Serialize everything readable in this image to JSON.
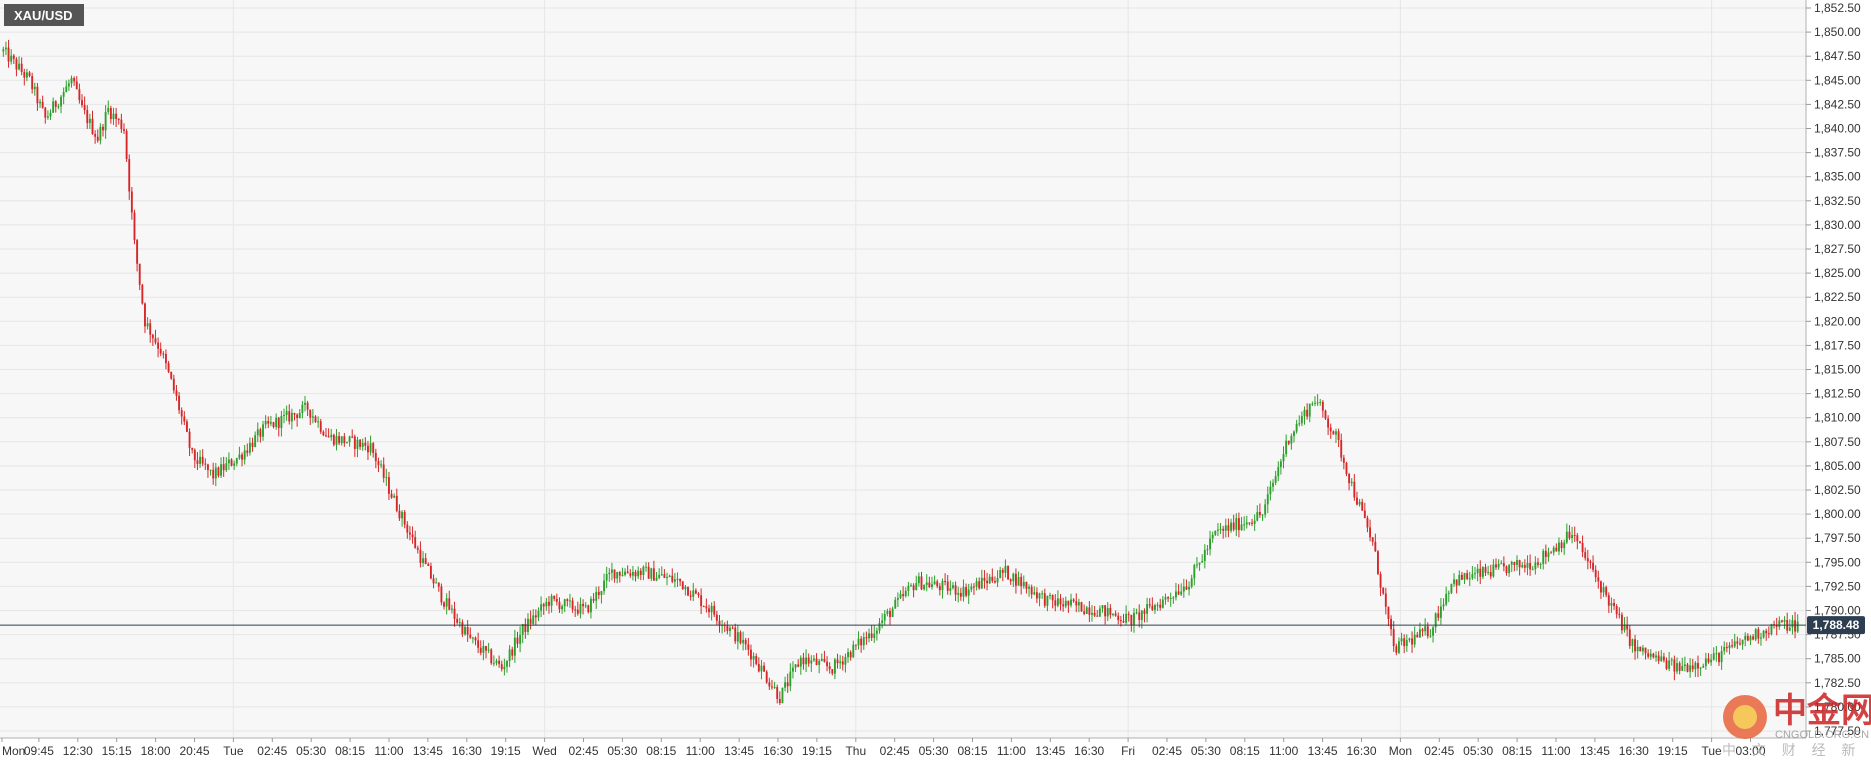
{
  "symbol": "XAU/USD",
  "current_price": "1,788.48",
  "watermark": {
    "name": "中金网",
    "site": "CNGOLD.ORG.CN",
    "tagline": "中 文 财 经 新 媒 体"
  },
  "colors": {
    "up": "#2ca02c",
    "down": "#d62728",
    "price_line": "#2c3e50",
    "grid": "#e6e6e6",
    "plot_bg": "#f7f7f7"
  },
  "chart_data": {
    "type": "candlestick",
    "title": "",
    "xlabel": "",
    "ylabel": "",
    "ylim": [
      1777.5,
      1852.5
    ],
    "y_ticks": [
      "1,777.50",
      "1,780.00",
      "1,782.50",
      "1,785.00",
      "1,787.50",
      "1,790.00",
      "1,792.50",
      "1,795.00",
      "1,797.50",
      "1,800.00",
      "1,802.50",
      "1,805.00",
      "1,807.50",
      "1,810.00",
      "1,812.50",
      "1,815.00",
      "1,817.50",
      "1,820.00",
      "1,822.50",
      "1,825.00",
      "1,827.50",
      "1,830.00",
      "1,832.50",
      "1,835.00",
      "1,837.50",
      "1,840.00",
      "1,842.50",
      "1,845.00",
      "1,847.50",
      "1,850.00",
      "1,852.50"
    ],
    "x_labels": [
      "Mon",
      "09:45",
      "12:30",
      "15:15",
      "18:00",
      "20:45",
      "Tue",
      "02:45",
      "05:30",
      "08:15",
      "11:00",
      "13:45",
      "16:30",
      "19:15",
      "Wed",
      "02:45",
      "05:30",
      "08:15",
      "11:00",
      "13:45",
      "16:30",
      "19:15",
      "Thu",
      "02:45",
      "05:30",
      "08:15",
      "11:00",
      "13:45",
      "16:30",
      "Fri",
      "02:45",
      "05:30",
      "08:15",
      "11:00",
      "13:45",
      "16:30",
      "Mon",
      "02:45",
      "05:30",
      "08:15",
      "11:00",
      "13:45",
      "16:30",
      "19:15",
      "Tue",
      "03:00"
    ],
    "current_price": 1788.48,
    "grid": true,
    "anchors": [
      [
        0,
        1848
      ],
      [
        10,
        1845
      ],
      [
        16,
        1841
      ],
      [
        26,
        1845
      ],
      [
        30,
        1842
      ],
      [
        36,
        1839
      ],
      [
        40,
        1842
      ],
      [
        46,
        1840
      ],
      [
        50,
        1828
      ],
      [
        54,
        1820
      ],
      [
        60,
        1817
      ],
      [
        66,
        1812
      ],
      [
        72,
        1806
      ],
      [
        80,
        1804
      ],
      [
        90,
        1806
      ],
      [
        100,
        1809
      ],
      [
        116,
        1811
      ],
      [
        124,
        1808
      ],
      [
        140,
        1807
      ],
      [
        148,
        1802
      ],
      [
        160,
        1795
      ],
      [
        168,
        1791
      ],
      [
        178,
        1787
      ],
      [
        190,
        1784
      ],
      [
        198,
        1788
      ],
      [
        208,
        1791
      ],
      [
        222,
        1790
      ],
      [
        232,
        1794
      ],
      [
        244,
        1794
      ],
      [
        258,
        1793
      ],
      [
        270,
        1790
      ],
      [
        284,
        1786
      ],
      [
        296,
        1781
      ],
      [
        304,
        1785
      ],
      [
        316,
        1784
      ],
      [
        332,
        1788
      ],
      [
        348,
        1793
      ],
      [
        366,
        1792
      ],
      [
        382,
        1794
      ],
      [
        398,
        1791
      ],
      [
        418,
        1790
      ],
      [
        430,
        1789
      ],
      [
        442,
        1791
      ],
      [
        452,
        1793
      ],
      [
        462,
        1798
      ],
      [
        480,
        1800
      ],
      [
        490,
        1808
      ],
      [
        500,
        1812
      ],
      [
        508,
        1808
      ],
      [
        514,
        1803
      ],
      [
        522,
        1797
      ],
      [
        530,
        1786
      ],
      [
        544,
        1788
      ],
      [
        552,
        1793
      ],
      [
        566,
        1794
      ],
      [
        584,
        1795
      ],
      [
        598,
        1798
      ],
      [
        608,
        1793
      ],
      [
        622,
        1786
      ],
      [
        638,
        1784
      ],
      [
        652,
        1785
      ],
      [
        664,
        1787
      ],
      [
        676,
        1788.5
      ],
      [
        684,
        1788.48
      ]
    ]
  }
}
